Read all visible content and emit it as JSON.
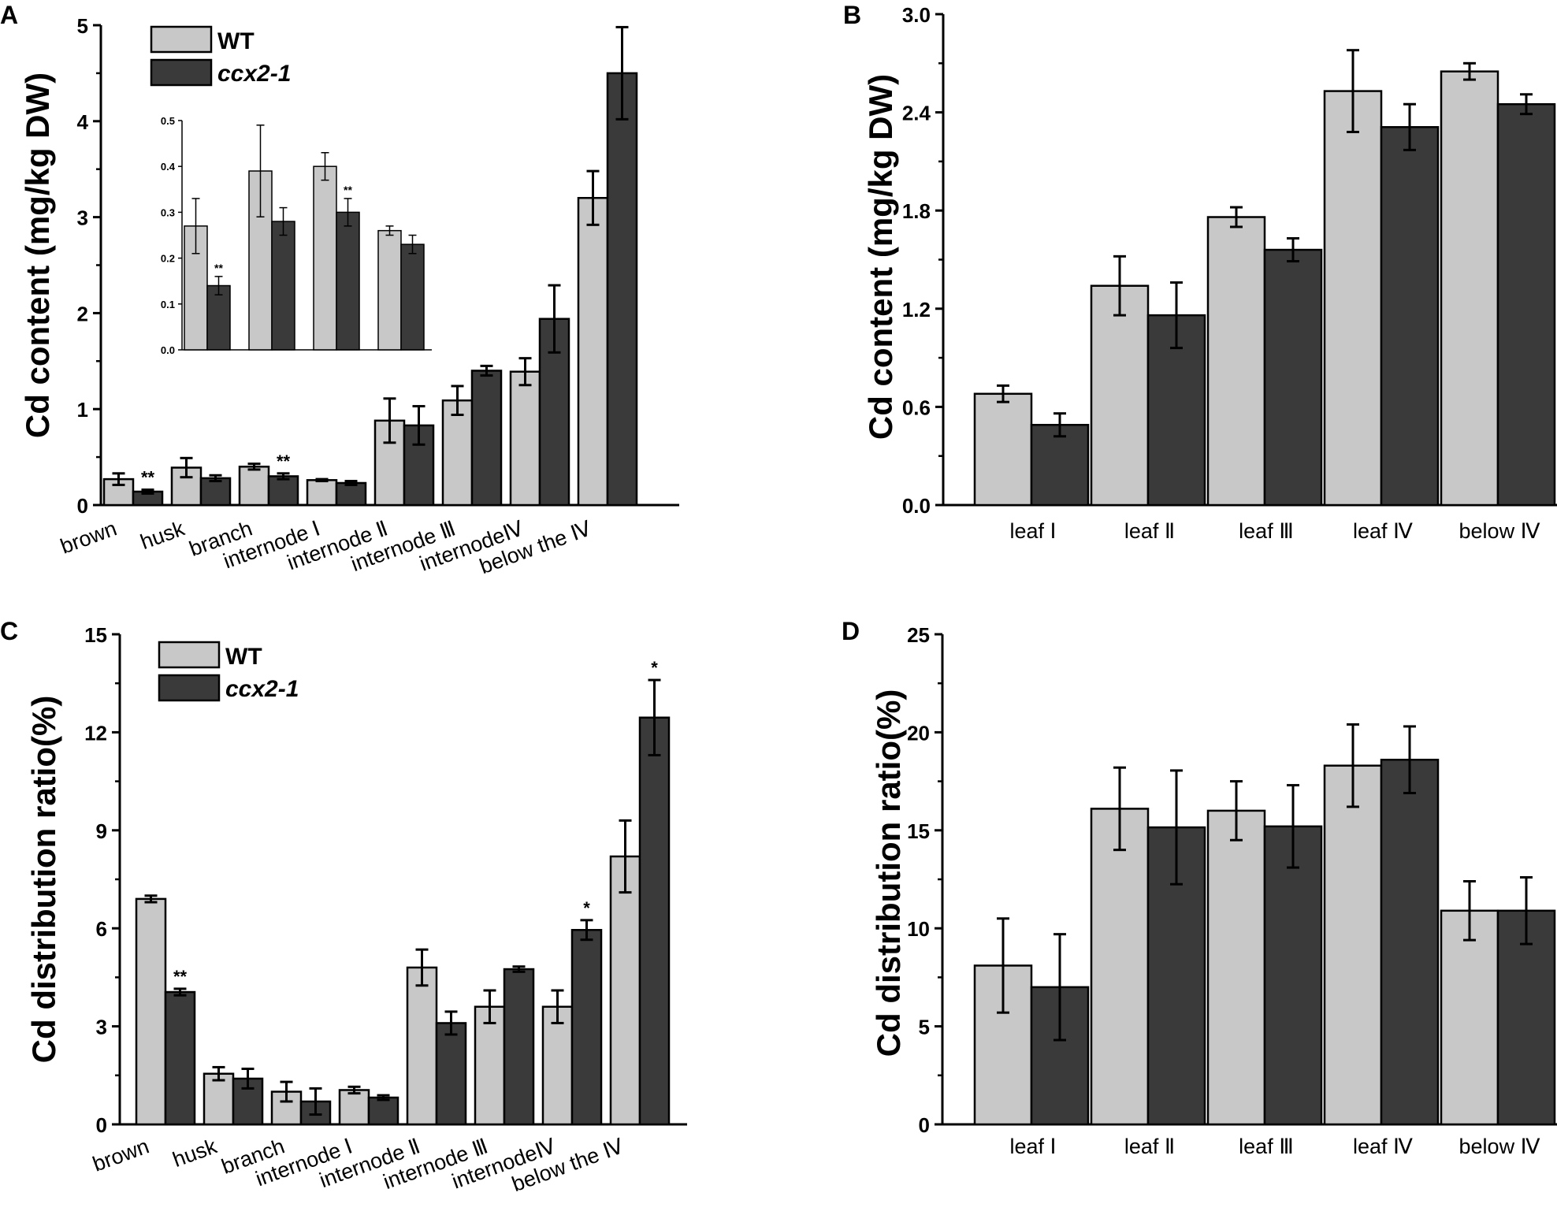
{
  "colors": {
    "wt": "#c8c8c8",
    "mutant": "#3a3a3a",
    "axis": "#000000"
  },
  "chart_data": [
    {
      "id": "A",
      "panel_label": "A",
      "type": "bar",
      "ylabel": "Cd content (mg/kg DW)",
      "ylim": [
        0,
        5
      ],
      "yticks": [
        "0",
        "1",
        "2",
        "3",
        "4",
        "5"
      ],
      "categories": [
        "brown",
        "husk",
        "branch",
        "internode Ⅰ",
        "internode Ⅱ",
        "internode Ⅲ",
        "internodeⅣ",
        "below the Ⅳ"
      ],
      "legend": [
        "WT",
        "ccx2-1"
      ],
      "series": [
        {
          "name": "WT",
          "values": [
            0.27,
            0.39,
            0.4,
            0.26,
            0.88,
            1.09,
            1.39,
            3.2
          ],
          "errors": [
            0.06,
            0.1,
            0.03,
            0.01,
            0.23,
            0.15,
            0.14,
            0.28
          ]
        },
        {
          "name": "ccx2-1",
          "values": [
            0.14,
            0.28,
            0.3,
            0.23,
            0.83,
            1.4,
            1.94,
            4.5
          ],
          "errors": [
            0.02,
            0.03,
            0.03,
            0.02,
            0.2,
            0.05,
            0.35,
            0.48
          ]
        }
      ],
      "significance": [
        {
          "category": 0,
          "series": 1,
          "label": "**"
        },
        {
          "category": 2,
          "series": 1,
          "label": "**"
        }
      ],
      "inset": {
        "ylim": [
          0,
          0.5
        ],
        "yticks": [
          "0.0",
          "0.1",
          "0.2",
          "0.3",
          "0.4",
          "0.5"
        ],
        "series": [
          {
            "name": "WT",
            "values": [
              0.27,
              0.39,
              0.4,
              0.26
            ],
            "errors": [
              0.06,
              0.1,
              0.03,
              0.01
            ]
          },
          {
            "name": "ccx2-1",
            "values": [
              0.14,
              0.28,
              0.3,
              0.23
            ],
            "errors": [
              0.02,
              0.03,
              0.03,
              0.02
            ]
          }
        ],
        "significance": [
          {
            "category": 0,
            "series": 1,
            "label": "**"
          },
          {
            "category": 2,
            "series": 1,
            "label": "**"
          }
        ]
      }
    },
    {
      "id": "B",
      "panel_label": "B",
      "type": "bar",
      "ylabel": "Cd content (mg/kg DW)",
      "ylim": [
        0,
        3
      ],
      "yticks": [
        "0.0",
        "0.6",
        "1.2",
        "1.8",
        "2.4",
        "3.0"
      ],
      "categories": [
        "leaf Ⅰ",
        "leaf Ⅱ",
        "leaf Ⅲ",
        "leaf Ⅳ",
        "below Ⅳ"
      ],
      "series": [
        {
          "name": "WT",
          "values": [
            0.68,
            1.34,
            1.76,
            2.53,
            2.65
          ],
          "errors": [
            0.05,
            0.18,
            0.06,
            0.25,
            0.05
          ]
        },
        {
          "name": "ccx2-1",
          "values": [
            0.49,
            1.16,
            1.56,
            2.31,
            2.45
          ],
          "errors": [
            0.07,
            0.2,
            0.07,
            0.14,
            0.06
          ]
        }
      ],
      "significance": []
    },
    {
      "id": "C",
      "panel_label": "C",
      "type": "bar",
      "ylabel": "Cd distribution ratio(%)",
      "ylim": [
        0,
        15
      ],
      "yticks": [
        "0",
        "3",
        "6",
        "9",
        "12",
        "15"
      ],
      "categories": [
        "brown",
        "husk",
        "branch",
        "internode Ⅰ",
        "internode Ⅱ",
        "internode Ⅲ",
        "internodeⅣ",
        "below the Ⅳ"
      ],
      "legend": [
        "WT",
        "ccx2-1"
      ],
      "series": [
        {
          "name": "WT",
          "values": [
            6.9,
            1.55,
            1.0,
            1.05,
            4.8,
            3.6,
            3.6,
            8.2
          ],
          "errors": [
            0.1,
            0.2,
            0.3,
            0.1,
            0.55,
            0.5,
            0.5,
            1.1
          ]
        },
        {
          "name": "ccx2-1",
          "values": [
            4.05,
            1.4,
            0.7,
            0.82,
            3.1,
            4.75,
            5.95,
            12.45
          ],
          "errors": [
            0.1,
            0.3,
            0.4,
            0.07,
            0.35,
            0.08,
            0.3,
            1.15
          ]
        }
      ],
      "significance": [
        {
          "category": 0,
          "series": 1,
          "label": "**"
        },
        {
          "category": 6,
          "series": 1,
          "label": "*"
        },
        {
          "category": 7,
          "series": 1,
          "label": "*"
        }
      ]
    },
    {
      "id": "D",
      "panel_label": "D",
      "type": "bar",
      "ylabel": "Cd distribution ratio(%)",
      "ylim": [
        0,
        25
      ],
      "yticks": [
        "0",
        "5",
        "10",
        "15",
        "20",
        "25"
      ],
      "categories": [
        "leaf Ⅰ",
        "leaf Ⅱ",
        "leaf Ⅲ",
        "leaf Ⅳ",
        "below Ⅳ"
      ],
      "series": [
        {
          "name": "WT",
          "values": [
            8.1,
            16.1,
            16.0,
            18.3,
            10.9
          ],
          "errors": [
            2.4,
            2.1,
            1.5,
            2.1,
            1.5
          ]
        },
        {
          "name": "ccx2-1",
          "values": [
            7.0,
            15.15,
            15.2,
            18.6,
            10.9
          ],
          "errors": [
            2.7,
            2.9,
            2.1,
            1.7,
            1.7
          ]
        }
      ],
      "significance": []
    }
  ]
}
